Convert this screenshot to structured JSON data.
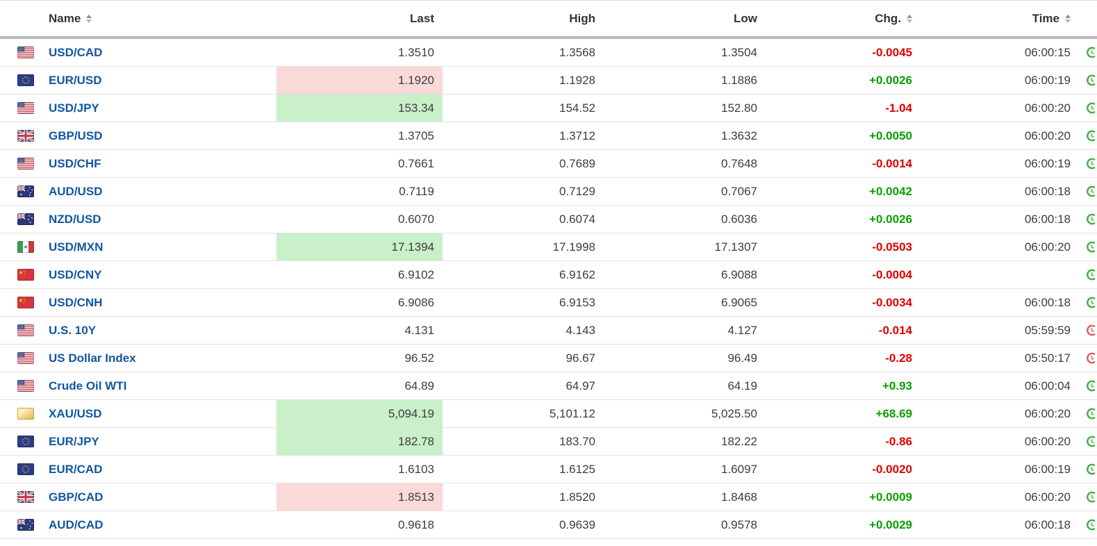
{
  "table": {
    "columns": [
      {
        "label": "Name",
        "sortable": true
      },
      {
        "label": "Last",
        "sortable": false
      },
      {
        "label": "High",
        "sortable": false
      },
      {
        "label": "Low",
        "sortable": false
      },
      {
        "label": "Chg.",
        "sortable": true
      },
      {
        "label": "Time",
        "sortable": true
      }
    ],
    "rows": [
      {
        "flag": "us-flag",
        "name": "USD/CAD",
        "last": "1.3510",
        "last_bg": "none",
        "high": "1.3568",
        "low": "1.3504",
        "chg": "-0.0045",
        "time": "06:00:15",
        "clock": "green"
      },
      {
        "flag": "eu-flag",
        "name": "EUR/USD",
        "last": "1.1920",
        "last_bg": "red",
        "high": "1.1928",
        "low": "1.1886",
        "chg": "+0.0026",
        "time": "06:00:19",
        "clock": "green"
      },
      {
        "flag": "us-flag",
        "name": "USD/JPY",
        "last": "153.34",
        "last_bg": "green",
        "high": "154.52",
        "low": "152.80",
        "chg": "-1.04",
        "time": "06:00:20",
        "clock": "green"
      },
      {
        "flag": "gb-flag",
        "name": "GBP/USD",
        "last": "1.3705",
        "last_bg": "none",
        "high": "1.3712",
        "low": "1.3632",
        "chg": "+0.0050",
        "time": "06:00:20",
        "clock": "green"
      },
      {
        "flag": "us-flag",
        "name": "USD/CHF",
        "last": "0.7661",
        "last_bg": "none",
        "high": "0.7689",
        "low": "0.7648",
        "chg": "-0.0014",
        "time": "06:00:19",
        "clock": "green"
      },
      {
        "flag": "au-flag",
        "name": "AUD/USD",
        "last": "0.7119",
        "last_bg": "none",
        "high": "0.7129",
        "low": "0.7067",
        "chg": "+0.0042",
        "time": "06:00:18",
        "clock": "green"
      },
      {
        "flag": "nz-flag",
        "name": "NZD/USD",
        "last": "0.6070",
        "last_bg": "none",
        "high": "0.6074",
        "low": "0.6036",
        "chg": "+0.0026",
        "time": "06:00:18",
        "clock": "green"
      },
      {
        "flag": "mx-flag",
        "name": "USD/MXN",
        "last": "17.1394",
        "last_bg": "green",
        "high": "17.1998",
        "low": "17.1307",
        "chg": "-0.0503",
        "time": "06:00:20",
        "clock": "green"
      },
      {
        "flag": "cn-flag",
        "name": "USD/CNY",
        "last": "6.9102",
        "last_bg": "none",
        "high": "6.9162",
        "low": "6.9088",
        "chg": "-0.0004",
        "time": "",
        "clock": "green"
      },
      {
        "flag": "cn-flag",
        "name": "USD/CNH",
        "last": "6.9086",
        "last_bg": "none",
        "high": "6.9153",
        "low": "6.9065",
        "chg": "-0.0034",
        "time": "06:00:18",
        "clock": "green"
      },
      {
        "flag": "us-flag",
        "name": "U.S. 10Y",
        "last": "4.131",
        "last_bg": "none",
        "high": "4.143",
        "low": "4.127",
        "chg": "-0.014",
        "time": "05:59:59",
        "clock": "red"
      },
      {
        "flag": "us-flag",
        "name": "US Dollar Index",
        "last": "96.52",
        "last_bg": "none",
        "high": "96.67",
        "low": "96.49",
        "chg": "-0.28",
        "time": "05:50:17",
        "clock": "red"
      },
      {
        "flag": "us-flag",
        "name": "Crude Oil WTI",
        "last": "64.89",
        "last_bg": "none",
        "high": "64.97",
        "low": "64.19",
        "chg": "+0.93",
        "time": "06:00:04",
        "clock": "green"
      },
      {
        "flag": "gold-bar",
        "name": "XAU/USD",
        "last": "5,094.19",
        "last_bg": "green",
        "high": "5,101.12",
        "low": "5,025.50",
        "chg": "+68.69",
        "time": "06:00:20",
        "clock": "green"
      },
      {
        "flag": "eu-flag",
        "name": "EUR/JPY",
        "last": "182.78",
        "last_bg": "green",
        "high": "183.70",
        "low": "182.22",
        "chg": "-0.86",
        "time": "06:00:20",
        "clock": "green"
      },
      {
        "flag": "eu-flag",
        "name": "EUR/CAD",
        "last": "1.6103",
        "last_bg": "none",
        "high": "1.6125",
        "low": "1.6097",
        "chg": "-0.0020",
        "time": "06:00:19",
        "clock": "green"
      },
      {
        "flag": "gb-flag",
        "name": "GBP/CAD",
        "last": "1.8513",
        "last_bg": "red",
        "high": "1.8520",
        "low": "1.8468",
        "chg": "+0.0009",
        "time": "06:00:20",
        "clock": "green"
      },
      {
        "flag": "au-flag",
        "name": "AUD/CAD",
        "last": "0.9618",
        "last_bg": "none",
        "high": "0.9639",
        "low": "0.9578",
        "chg": "+0.0029",
        "time": "06:00:18",
        "clock": "green"
      }
    ]
  },
  "colors": {
    "name_link": "#1256a0",
    "positive": "#0a9e00",
    "negative": "#e00000",
    "highlight_up_bg": "#c9f0c9",
    "highlight_down_bg": "#fad9d9",
    "clock_green": "#3fb13f",
    "clock_red": "#e05c5c",
    "header_divider": "#b9b9b9",
    "row_divider": "#e3e3e3",
    "text": "#3c3c3c"
  }
}
